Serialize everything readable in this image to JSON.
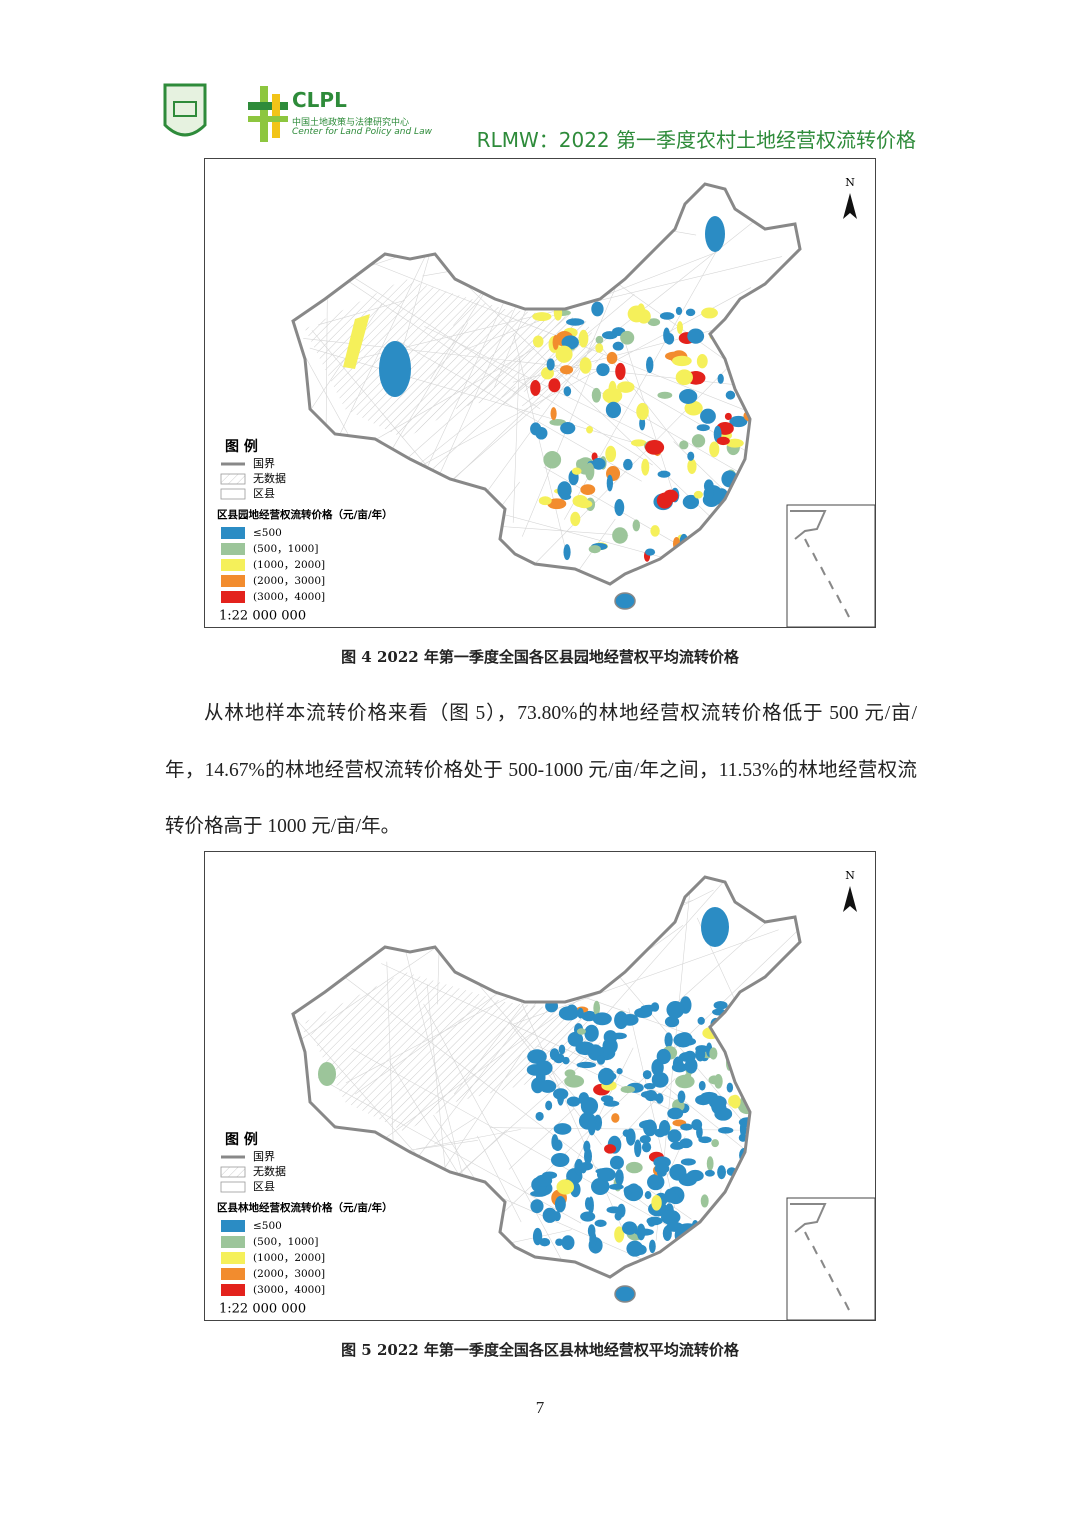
{
  "header": {
    "logo_abbr": "CLPL",
    "logo_cn": "中国土地政策与法律研究中心",
    "logo_en": "Center for Land Policy and Law",
    "title": "RLMW：2022 第一季度农村土地经营权流转价格"
  },
  "figures": [
    {
      "north": "N",
      "legend_title": "图  例",
      "legend_items": [
        "国界",
        "无数据",
        "区县"
      ],
      "class_title": "区县园地经营权流转价格（元/亩/年）",
      "classes": [
        {
          "label": "≤500",
          "color": "#2b8cc4"
        },
        {
          "label": "(500，1000]",
          "color": "#9cc59a"
        },
        {
          "label": "(1000，2000]",
          "color": "#f5f05a"
        },
        {
          "label": "(2000，3000]",
          "color": "#f28c2e"
        },
        {
          "label": "(3000，4000]",
          "color": "#e3221c"
        }
      ],
      "scale": "1:22 000 000",
      "caption": "图 4  2022 年第一季度全国各区县园地经营权平均流转价格"
    },
    {
      "north": "N",
      "legend_title": "图  例",
      "legend_items": [
        "国界",
        "无数据",
        "区县"
      ],
      "class_title": "区县林地经营权流转价格（元/亩/年）",
      "classes": [
        {
          "label": "≤500",
          "color": "#2b8cc4"
        },
        {
          "label": "(500，1000]",
          "color": "#9cc59a"
        },
        {
          "label": "(1000，2000]",
          "color": "#f5f05a"
        },
        {
          "label": "(2000，3000]",
          "color": "#f28c2e"
        },
        {
          "label": "(3000，4000]",
          "color": "#e3221c"
        }
      ],
      "scale": "1:22 000 000",
      "caption": "图 5 2022 年第一季度全国各区县林地经营权平均流转价格"
    }
  ],
  "paragraph": "从林地样本流转价格来看（图 5），73.80%的林地经营权流转价格低于 500 元/亩/年，14.67%的林地经营权流转价格处于 500-1000 元/亩/年之间，11.53%的林地经营权流转价格高于 1000 元/亩/年。",
  "page_number": "7"
}
